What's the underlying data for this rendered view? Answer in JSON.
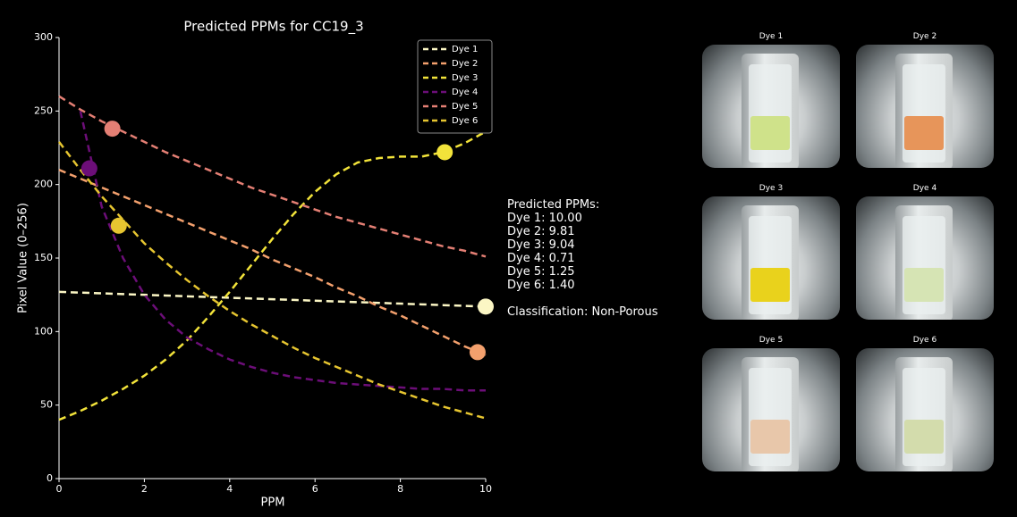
{
  "chart_data": {
    "type": "line",
    "title": "Predicted PPMs for CC19_3",
    "x_label": "PPM",
    "y_label": "Pixel Value (0–256)",
    "xlim": [
      0,
      10
    ],
    "ylim": [
      0,
      300
    ],
    "xticks": [
      0,
      2,
      4,
      6,
      8,
      10
    ],
    "yticks": [
      0,
      50,
      100,
      150,
      200,
      250,
      300
    ],
    "legend": "upper right",
    "grid": false,
    "x": [
      0,
      0.5,
      1,
      1.5,
      2,
      2.5,
      3,
      3.5,
      4,
      4.5,
      5,
      5.5,
      6,
      6.5,
      7,
      7.5,
      8,
      8.5,
      9,
      9.5,
      10
    ],
    "series": [
      {
        "name": "Dye 1",
        "color": "#fbf6c4",
        "values": [
          127,
          126.5,
          126,
          125.5,
          125,
          124.5,
          124,
          123.5,
          123,
          122.5,
          122,
          121.5,
          121,
          120.5,
          120,
          119.5,
          119,
          118.5,
          118,
          117.5,
          117
        ],
        "marker_x": 10.0,
        "marker_y": 117
      },
      {
        "name": "Dye 2",
        "color": "#f3a06d",
        "values": [
          210,
          204,
          198,
          192,
          186,
          180,
          174,
          168,
          162,
          156,
          149,
          143,
          137,
          130,
          124,
          117,
          111,
          104,
          97,
          90,
          84
        ],
        "marker_x": 9.81,
        "marker_y": 86
      },
      {
        "name": "Dye 3",
        "color": "#f2e33a",
        "values": [
          40,
          46,
          53,
          61,
          70,
          81,
          94,
          110,
          127,
          145,
          163,
          180,
          195,
          207,
          215,
          218,
          219,
          219,
          222,
          228,
          236
        ],
        "marker_x": 9.04,
        "marker_y": 222
      },
      {
        "name": "Dye 4",
        "color": "#6c0e78",
        "values": [
          null,
          250,
          185,
          150,
          125,
          108,
          96,
          88,
          81,
          76,
          72,
          69,
          67,
          65,
          64,
          63,
          62,
          61,
          61,
          60,
          60
        ],
        "marker_x": 0.71,
        "marker_y": 211
      },
      {
        "name": "Dye 5",
        "color": "#e47f74",
        "values": [
          260,
          251,
          243,
          236,
          229,
          222,
          216,
          210,
          204,
          198,
          193,
          188,
          183,
          178,
          174,
          170,
          166,
          162,
          158,
          155,
          151
        ],
        "marker_x": 1.25,
        "marker_y": 238
      },
      {
        "name": "Dye 6",
        "color": "#e6c530",
        "values": [
          229,
          210,
          192,
          176,
          160,
          147,
          135,
          124,
          114,
          105,
          97,
          89,
          82,
          76,
          70,
          64,
          59,
          54,
          49,
          45,
          41
        ],
        "marker_x": 1.4,
        "marker_y": 172
      }
    ]
  },
  "predictions": {
    "heading": "Predicted PPMs:",
    "lines": [
      "Dye 1: 10.00",
      "Dye 2: 9.81",
      "Dye 3: 9.04",
      "Dye 4: 0.71",
      "Dye 5: 1.25",
      "Dye 6: 1.40"
    ],
    "classification": "Classification: Non-Porous"
  },
  "images": [
    {
      "title": "Dye 1"
    },
    {
      "title": "Dye 2"
    },
    {
      "title": "Dye 3"
    },
    {
      "title": "Dye 4"
    },
    {
      "title": "Dye 5"
    },
    {
      "title": "Dye 6"
    }
  ]
}
